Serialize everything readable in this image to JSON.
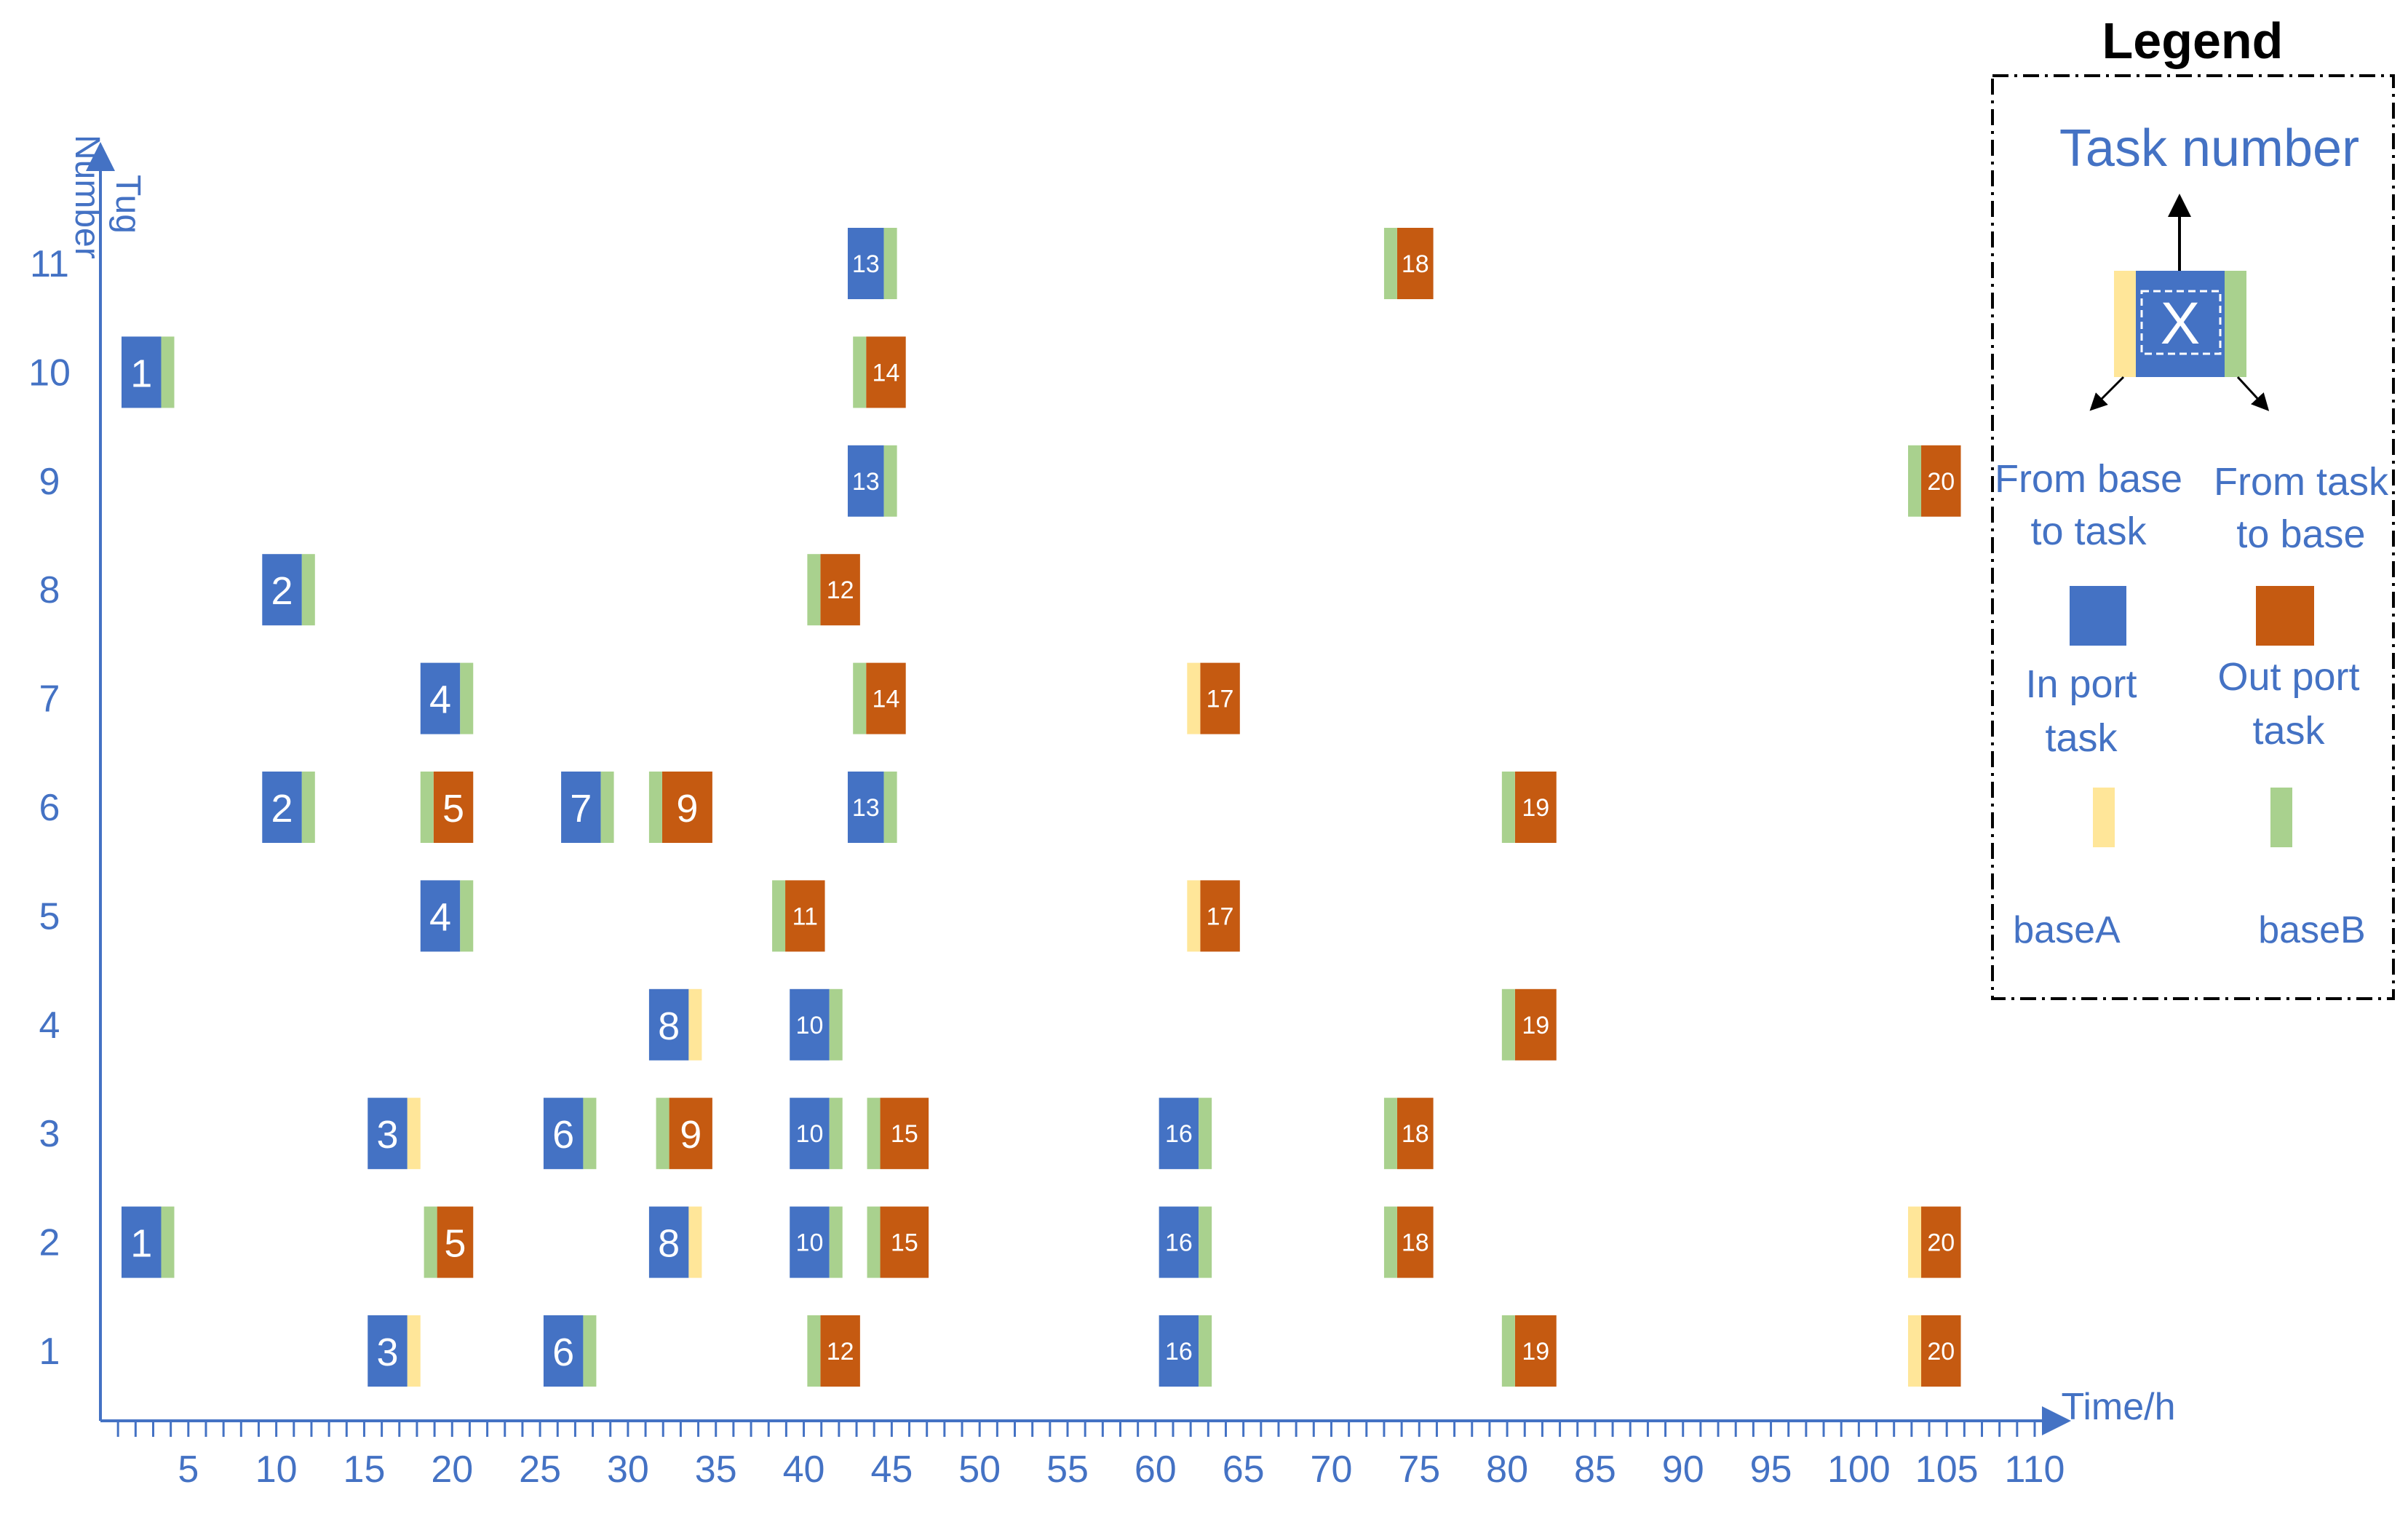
{
  "chart_data": {
    "type": "gantt",
    "x_axis": {
      "label": "Time/h",
      "range": [
        0,
        110
      ],
      "major_ticks": [
        5,
        10,
        15,
        20,
        25,
        30,
        35,
        40,
        45,
        50,
        55,
        60,
        65,
        70,
        75,
        80,
        85,
        90,
        95,
        100,
        105,
        110
      ],
      "minor_tick_step": 1
    },
    "y_axis": {
      "label": "Tug Number",
      "categories": [
        1,
        2,
        3,
        4,
        5,
        6,
        7,
        8,
        9,
        10,
        11
      ]
    },
    "colors": {
      "in_port": "#4472C4",
      "out_port": "#C55A11",
      "baseA": "#FFE699",
      "baseB": "#A9D18E",
      "axis": "#4472C4"
    },
    "tasks": [
      {
        "tug": 11,
        "task": "13",
        "kind": "in",
        "start": 42.5,
        "end": 45.3,
        "base": "B",
        "base_side": "after"
      },
      {
        "tug": 11,
        "task": "18",
        "kind": "out",
        "start": 73.0,
        "end": 75.8,
        "base": "B",
        "base_side": "before"
      },
      {
        "tug": 10,
        "task": "1",
        "kind": "in",
        "start": 1.2,
        "end": 4.2,
        "base": "B",
        "base_side": "after"
      },
      {
        "tug": 10,
        "task": "14",
        "kind": "out",
        "start": 42.8,
        "end": 45.8,
        "base": "B",
        "base_side": "before"
      },
      {
        "tug": 9,
        "task": "13",
        "kind": "in",
        "start": 42.5,
        "end": 45.3,
        "base": "B",
        "base_side": "after"
      },
      {
        "tug": 9,
        "task": "20",
        "kind": "out",
        "start": 102.8,
        "end": 105.8,
        "base": "B",
        "base_side": "before"
      },
      {
        "tug": 8,
        "task": "2",
        "kind": "in",
        "start": 9.2,
        "end": 12.2,
        "base": "B",
        "base_side": "after"
      },
      {
        "tug": 8,
        "task": "12",
        "kind": "out",
        "start": 40.2,
        "end": 43.2,
        "base": "B",
        "base_side": "before"
      },
      {
        "tug": 7,
        "task": "4",
        "kind": "in",
        "start": 18.2,
        "end": 21.2,
        "base": "B",
        "base_side": "after"
      },
      {
        "tug": 7,
        "task": "14",
        "kind": "out",
        "start": 42.8,
        "end": 45.8,
        "base": "B",
        "base_side": "before"
      },
      {
        "tug": 7,
        "task": "17",
        "kind": "out",
        "start": 61.8,
        "end": 64.8,
        "base": "A",
        "base_side": "before"
      },
      {
        "tug": 6,
        "task": "2",
        "kind": "in",
        "start": 9.2,
        "end": 12.2,
        "base": "B",
        "base_side": "after"
      },
      {
        "tug": 6,
        "task": "5",
        "kind": "out",
        "start": 18.2,
        "end": 21.2,
        "base": "B",
        "base_side": "before"
      },
      {
        "tug": 6,
        "task": "7",
        "kind": "in",
        "start": 26.2,
        "end": 29.2,
        "base": "B",
        "base_side": "after"
      },
      {
        "tug": 6,
        "task": "9",
        "kind": "out",
        "start": 31.2,
        "end": 34.8,
        "base": "B",
        "base_side": "before"
      },
      {
        "tug": 6,
        "task": "13",
        "kind": "in",
        "start": 42.5,
        "end": 45.3,
        "base": "B",
        "base_side": "after"
      },
      {
        "tug": 6,
        "task": "19",
        "kind": "out",
        "start": 79.7,
        "end": 82.8,
        "base": "B",
        "base_side": "before"
      },
      {
        "tug": 5,
        "task": "4",
        "kind": "in",
        "start": 18.2,
        "end": 21.2,
        "base": "B",
        "base_side": "after"
      },
      {
        "tug": 5,
        "task": "11",
        "kind": "out",
        "start": 38.2,
        "end": 41.2,
        "base": "B",
        "base_side": "before"
      },
      {
        "tug": 5,
        "task": "17",
        "kind": "out",
        "start": 61.8,
        "end": 64.8,
        "base": "A",
        "base_side": "before"
      },
      {
        "tug": 4,
        "task": "8",
        "kind": "in",
        "start": 31.2,
        "end": 34.2,
        "base": "A",
        "base_side": "after"
      },
      {
        "tug": 4,
        "task": "10",
        "kind": "in",
        "start": 39.2,
        "end": 42.2,
        "base": "B",
        "base_side": "after"
      },
      {
        "tug": 4,
        "task": "19",
        "kind": "out",
        "start": 79.7,
        "end": 82.8,
        "base": "B",
        "base_side": "before"
      },
      {
        "tug": 3,
        "task": "3",
        "kind": "in",
        "start": 15.2,
        "end": 18.2,
        "base": "A",
        "base_side": "after"
      },
      {
        "tug": 3,
        "task": "6",
        "kind": "in",
        "start": 25.2,
        "end": 28.2,
        "base": "B",
        "base_side": "after"
      },
      {
        "tug": 3,
        "task": "9",
        "kind": "out",
        "start": 31.6,
        "end": 34.8,
        "base": "B",
        "base_side": "before"
      },
      {
        "tug": 3,
        "task": "10",
        "kind": "in",
        "start": 39.2,
        "end": 42.2,
        "base": "B",
        "base_side": "after"
      },
      {
        "tug": 3,
        "task": "15",
        "kind": "out",
        "start": 43.6,
        "end": 47.1,
        "base": "B",
        "base_side": "before"
      },
      {
        "tug": 3,
        "task": "16",
        "kind": "in",
        "start": 60.2,
        "end": 63.2,
        "base": "B",
        "base_side": "after"
      },
      {
        "tug": 3,
        "task": "18",
        "kind": "out",
        "start": 73.0,
        "end": 75.8,
        "base": "B",
        "base_side": "before"
      },
      {
        "tug": 2,
        "task": "1",
        "kind": "in",
        "start": 1.2,
        "end": 4.2,
        "base": "B",
        "base_side": "after"
      },
      {
        "tug": 2,
        "task": "5",
        "kind": "out",
        "start": 18.4,
        "end": 21.2,
        "base": "B",
        "base_side": "before"
      },
      {
        "tug": 2,
        "task": "8",
        "kind": "in",
        "start": 31.2,
        "end": 34.2,
        "base": "A",
        "base_side": "after"
      },
      {
        "tug": 2,
        "task": "10",
        "kind": "in",
        "start": 39.2,
        "end": 42.2,
        "base": "B",
        "base_side": "after"
      },
      {
        "tug": 2,
        "task": "15",
        "kind": "out",
        "start": 43.6,
        "end": 47.1,
        "base": "B",
        "base_side": "before"
      },
      {
        "tug": 2,
        "task": "16",
        "kind": "in",
        "start": 60.2,
        "end": 63.2,
        "base": "B",
        "base_side": "after"
      },
      {
        "tug": 2,
        "task": "18",
        "kind": "out",
        "start": 73.0,
        "end": 75.8,
        "base": "B",
        "base_side": "before"
      },
      {
        "tug": 2,
        "task": "20",
        "kind": "out",
        "start": 102.8,
        "end": 105.8,
        "base": "A",
        "base_side": "before"
      },
      {
        "tug": 1,
        "task": "3",
        "kind": "in",
        "start": 15.2,
        "end": 18.2,
        "base": "A",
        "base_side": "after"
      },
      {
        "tug": 1,
        "task": "6",
        "kind": "in",
        "start": 25.2,
        "end": 28.2,
        "base": "B",
        "base_side": "after"
      },
      {
        "tug": 1,
        "task": "12",
        "kind": "out",
        "start": 40.2,
        "end": 43.2,
        "base": "B",
        "base_side": "before"
      },
      {
        "tug": 1,
        "task": "16",
        "kind": "in",
        "start": 60.2,
        "end": 63.2,
        "base": "B",
        "base_side": "after"
      },
      {
        "tug": 1,
        "task": "19",
        "kind": "out",
        "start": 79.7,
        "end": 82.8,
        "base": "B",
        "base_side": "before"
      },
      {
        "tug": 1,
        "task": "20",
        "kind": "out",
        "start": 102.8,
        "end": 105.8,
        "base": "A",
        "base_side": "before"
      }
    ]
  },
  "legend": {
    "title": "Legend",
    "task_number": "Task number",
    "example_symbol": "X",
    "from_base_line1": "From base",
    "from_base_line2": "to task",
    "from_task_line1": "From task",
    "from_task_line2": "to base",
    "in_port_line1": "In port",
    "in_port_line2": "task",
    "out_port_line1": "Out port",
    "out_port_line2": "task",
    "baseA": "baseA",
    "baseB": "baseB"
  }
}
